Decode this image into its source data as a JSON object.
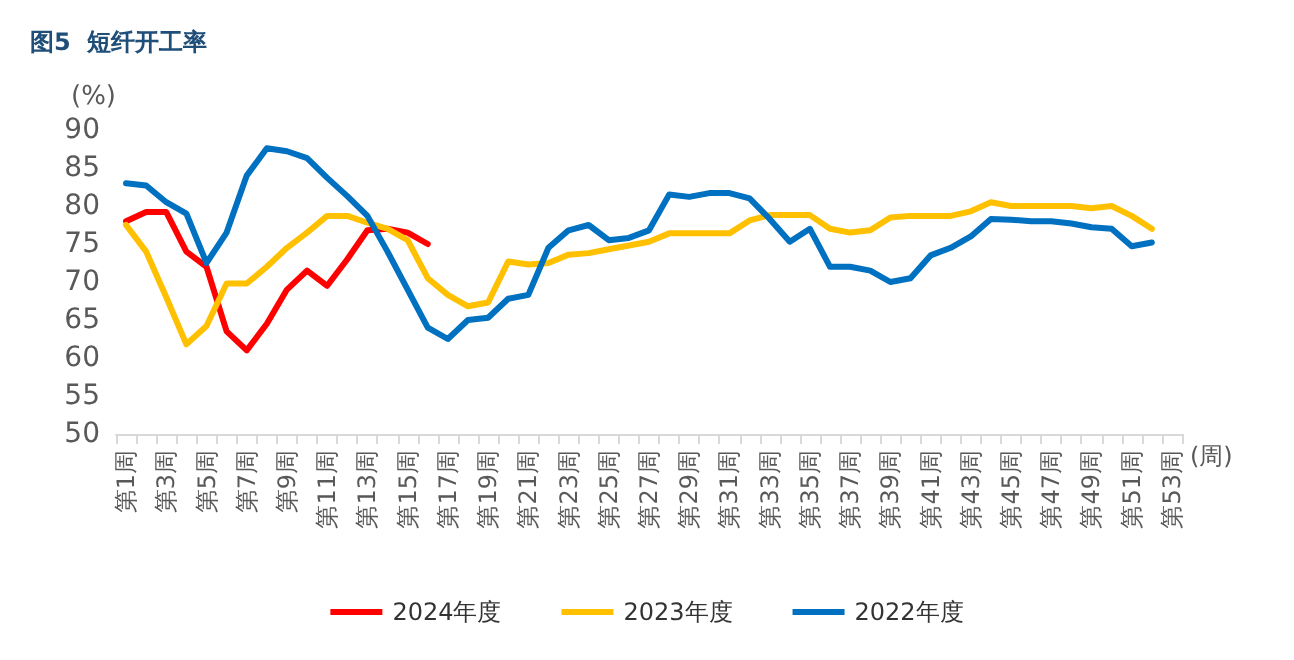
{
  "chart_data": {
    "type": "line",
    "title": "图5  短纤开工率",
    "ylabel": "(%)",
    "xlabel": "(周)",
    "categories": [
      "第1周",
      null,
      "第3周",
      null,
      "第5周",
      null,
      "第7周",
      null,
      "第9周",
      null,
      "第11周",
      null,
      "第13周",
      null,
      "第15周",
      null,
      "第17周",
      null,
      "第19周",
      null,
      "第21周",
      null,
      "第23周",
      null,
      "第25周",
      null,
      "第27周",
      null,
      "第29周",
      null,
      "第31周",
      null,
      "第33周",
      null,
      "第35周",
      null,
      "第37周",
      null,
      "第39周",
      null,
      "第41周",
      null,
      "第43周",
      null,
      "第45周",
      null,
      "第47周",
      null,
      "第49周",
      null,
      "第51周",
      null,
      "第53周"
    ],
    "series": [
      {
        "name": "2024年度",
        "color": "#ff0000",
        "values": [
          78,
          79.2,
          79.2,
          74,
          72,
          63.5,
          61,
          64.5,
          69,
          71.5,
          69.5,
          73,
          76.8,
          77,
          76.5,
          75,
          null,
          null,
          null,
          null,
          null,
          null,
          null,
          null,
          null,
          null,
          null,
          null,
          null,
          null,
          null,
          null,
          null,
          null,
          null,
          null,
          null,
          null,
          null,
          null,
          null,
          null,
          null,
          null,
          null,
          null,
          null,
          null,
          null,
          null,
          null,
          null,
          null
        ]
      },
      {
        "name": "2023年度",
        "color": "#ffc000",
        "values": [
          77.5,
          74,
          68,
          61.8,
          64.2,
          69.8,
          69.8,
          72,
          74.5,
          76.5,
          78.7,
          78.7,
          77.8,
          77,
          75.5,
          70.5,
          68.3,
          66.8,
          67.3,
          72.7,
          72.3,
          72.5,
          73.6,
          73.8,
          74.3,
          74.8,
          75.3,
          76.4,
          76.4,
          76.4,
          76.4,
          78.1,
          78.8,
          78.8,
          78.8,
          77,
          76.5,
          76.8,
          78.5,
          78.7,
          78.7,
          78.7,
          79.3,
          80.5,
          80,
          80,
          80,
          80,
          79.7,
          80,
          78.7,
          77,
          null
        ]
      },
      {
        "name": "2022年度",
        "color": "#0070c0",
        "values": [
          83,
          82.7,
          80.5,
          79,
          72.5,
          76.5,
          84,
          87.6,
          87.2,
          86.3,
          83.7,
          81.3,
          78.7,
          74,
          69,
          64,
          62.5,
          65,
          65.3,
          67.8,
          68.3,
          74.5,
          76.8,
          77.5,
          75.5,
          75.8,
          76.8,
          81.5,
          81.2,
          81.7,
          81.7,
          81,
          78.3,
          75.3,
          77,
          72,
          72,
          71.5,
          70,
          70.5,
          73.5,
          74.5,
          76,
          78.3,
          78.2,
          78,
          78,
          77.7,
          77.2,
          77,
          74.7,
          75.2,
          null
        ]
      }
    ],
    "ylim": [
      50,
      90
    ],
    "yticks": [
      50,
      55,
      60,
      65,
      70,
      75,
      80,
      85,
      90
    ],
    "grid": false,
    "legend": "bottom",
    "marker": "none",
    "line_style": "solid"
  }
}
